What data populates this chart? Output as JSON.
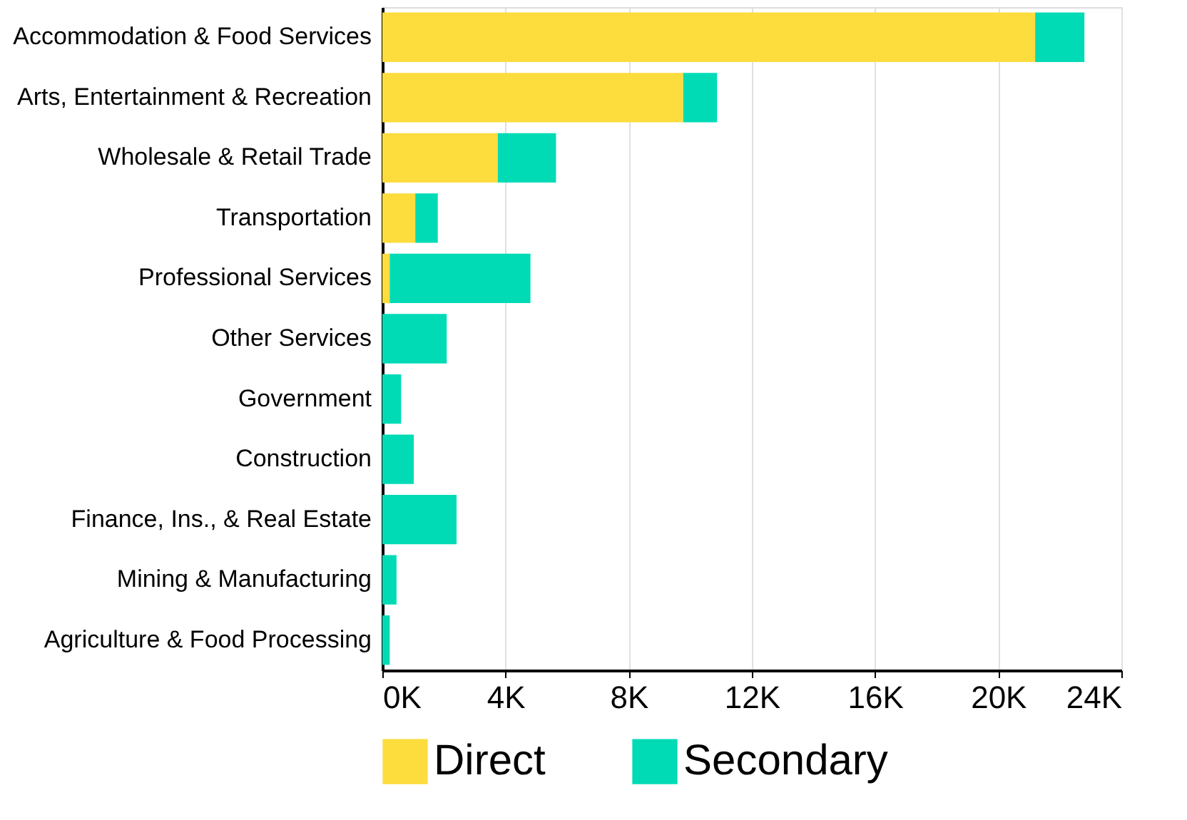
{
  "chart_data": {
    "type": "bar",
    "orientation": "horizontal",
    "stacked": true,
    "categories": [
      "Accommodation & Food Services",
      "Arts, Entertainment & Recreation",
      "Wholesale & Retail Trade",
      "Transportation",
      "Professional Services",
      "Other Services",
      "Government",
      "Construction",
      "Finance, Ins., & Real Estate",
      "Mining & Manufacturing",
      "Agriculture & Food Processing"
    ],
    "series": [
      {
        "name": "Direct",
        "color": "#fddc3d",
        "values": [
          21200,
          9770,
          3750,
          1070,
          240,
          0,
          0,
          0,
          0,
          0,
          0
        ]
      },
      {
        "name": "Secondary",
        "color": "#00dbb5",
        "values": [
          1600,
          1100,
          1890,
          730,
          4570,
          2090,
          610,
          1020,
          2410,
          460,
          240
        ]
      }
    ],
    "xlim": [
      0,
      24000
    ],
    "xticks": [
      {
        "value": 0,
        "label": "0K"
      },
      {
        "value": 4000,
        "label": "4K"
      },
      {
        "value": 8000,
        "label": "8K"
      },
      {
        "value": 12000,
        "label": "12K"
      },
      {
        "value": 16000,
        "label": "16K"
      },
      {
        "value": 20000,
        "label": "20K"
      },
      {
        "value": 24000,
        "label": "24K"
      }
    ],
    "grid": "x",
    "legend": "bottom"
  }
}
